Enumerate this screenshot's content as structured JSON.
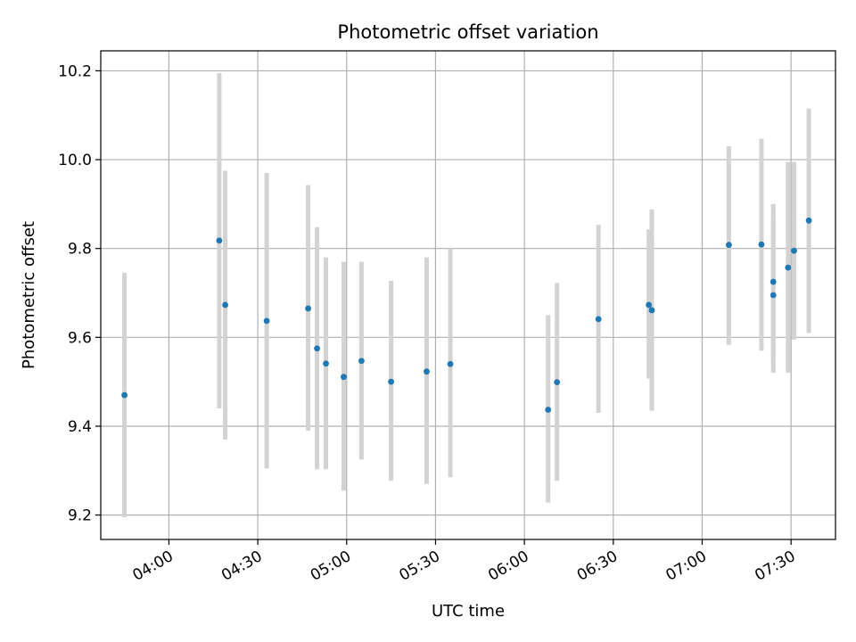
{
  "chart_data": {
    "type": "scatter",
    "title": "Photometric offset variation",
    "xlabel": "UTC time",
    "ylabel": "Photometric offset",
    "grid": true,
    "xlim": [
      "03:37",
      "07:45"
    ],
    "ylim": [
      9.145,
      10.245
    ],
    "x_ticks": [
      "04:00",
      "04:30",
      "05:00",
      "05:30",
      "06:00",
      "06:30",
      "07:00",
      "07:30"
    ],
    "y_ticks": [
      "9.2",
      "9.4",
      "9.6",
      "9.8",
      "10.0",
      "10.2"
    ],
    "colors": {
      "point": "#1f77b4",
      "errorbar": "#d3d3d3",
      "grid": "#b0b0b0"
    },
    "points": [
      {
        "x": "03:45",
        "y": 9.47,
        "low": 9.195,
        "high": 9.745
      },
      {
        "x": "04:17",
        "y": 9.818,
        "low": 9.44,
        "high": 10.195
      },
      {
        "x": "04:19",
        "y": 9.673,
        "low": 9.37,
        "high": 9.975
      },
      {
        "x": "04:33",
        "y": 9.637,
        "low": 9.305,
        "high": 9.97
      },
      {
        "x": "04:47",
        "y": 9.665,
        "low": 9.39,
        "high": 9.943
      },
      {
        "x": "04:50",
        "y": 9.575,
        "low": 9.303,
        "high": 9.848
      },
      {
        "x": "04:53",
        "y": 9.541,
        "low": 9.303,
        "high": 9.78
      },
      {
        "x": "04:59",
        "y": 9.511,
        "low": 9.255,
        "high": 9.77
      },
      {
        "x": "05:05",
        "y": 9.547,
        "low": 9.325,
        "high": 9.77
      },
      {
        "x": "05:15",
        "y": 9.5,
        "low": 9.277,
        "high": 9.727
      },
      {
        "x": "05:27",
        "y": 9.523,
        "low": 9.27,
        "high": 9.78
      },
      {
        "x": "05:35",
        "y": 9.54,
        "low": 9.285,
        "high": 9.8
      },
      {
        "x": "06:08",
        "y": 9.437,
        "low": 9.228,
        "high": 9.65
      },
      {
        "x": "06:11",
        "y": 9.499,
        "low": 9.277,
        "high": 9.722
      },
      {
        "x": "06:25",
        "y": 9.641,
        "low": 9.43,
        "high": 9.853
      },
      {
        "x": "06:42",
        "y": 9.673,
        "low": 9.507,
        "high": 9.843
      },
      {
        "x": "06:43",
        "y": 9.661,
        "low": 9.435,
        "high": 9.888
      },
      {
        "x": "07:09",
        "y": 9.808,
        "low": 9.583,
        "high": 10.03
      },
      {
        "x": "07:20",
        "y": 9.809,
        "low": 9.57,
        "high": 10.047
      },
      {
        "x": "07:24",
        "y": 9.725,
        "low": 9.55,
        "high": 9.9
      },
      {
        "x": "07:24",
        "y": 9.695,
        "low": 9.52,
        "high": 9.873
      },
      {
        "x": "07:29",
        "y": 9.757,
        "low": 9.52,
        "high": 9.995
      },
      {
        "x": "07:31",
        "y": 9.795,
        "low": 9.595,
        "high": 9.995
      },
      {
        "x": "07:36",
        "y": 9.863,
        "low": 9.61,
        "high": 10.115
      }
    ]
  }
}
